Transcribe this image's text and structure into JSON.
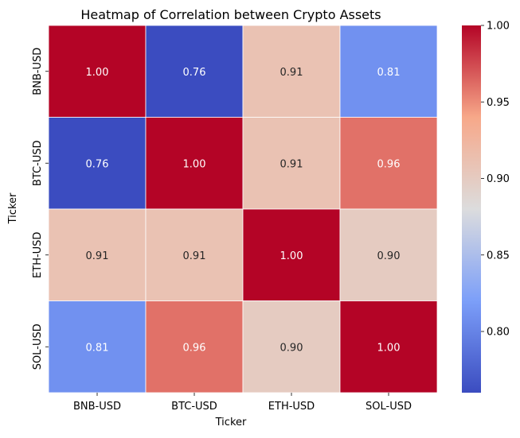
{
  "chart_data": {
    "type": "heatmap",
    "title": "Heatmap of Correlation between Crypto Assets",
    "xlabel": "Ticker",
    "ylabel": "Ticker",
    "x_categories": [
      "BNB-USD",
      "BTC-USD",
      "ETH-USD",
      "SOL-USD"
    ],
    "y_categories": [
      "BNB-USD",
      "BTC-USD",
      "ETH-USD",
      "SOL-USD"
    ],
    "values": [
      [
        1.0,
        0.76,
        0.91,
        0.81
      ],
      [
        0.76,
        1.0,
        0.91,
        0.96
      ],
      [
        0.91,
        0.91,
        1.0,
        0.9
      ],
      [
        0.81,
        0.96,
        0.9,
        1.0
      ]
    ],
    "value_format": "0.00",
    "colormap": "coolwarm",
    "colorbar": {
      "range": [
        0.76,
        1.0
      ],
      "ticks": [
        0.8,
        0.85,
        0.9,
        0.95,
        1.0
      ],
      "tick_labels": [
        "0.80",
        "0.85",
        "0.90",
        "0.95",
        "1.00"
      ]
    },
    "grid": false
  }
}
